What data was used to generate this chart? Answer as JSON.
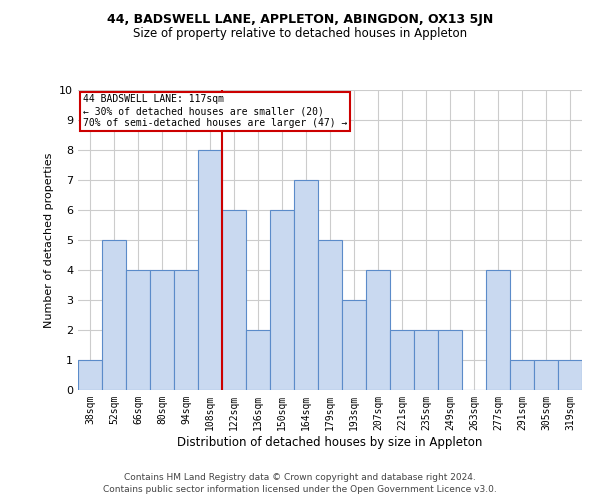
{
  "title1": "44, BADSWELL LANE, APPLETON, ABINGDON, OX13 5JN",
  "title2": "Size of property relative to detached houses in Appleton",
  "xlabel": "Distribution of detached houses by size in Appleton",
  "ylabel": "Number of detached properties",
  "categories": [
    "38sqm",
    "52sqm",
    "66sqm",
    "80sqm",
    "94sqm",
    "108sqm",
    "122sqm",
    "136sqm",
    "150sqm",
    "164sqm",
    "179sqm",
    "193sqm",
    "207sqm",
    "221sqm",
    "235sqm",
    "249sqm",
    "263sqm",
    "277sqm",
    "291sqm",
    "305sqm",
    "319sqm"
  ],
  "values": [
    1,
    5,
    4,
    4,
    4,
    8,
    6,
    2,
    6,
    7,
    5,
    3,
    4,
    2,
    2,
    2,
    0,
    4,
    1,
    1,
    1
  ],
  "bar_color": "#c9d9f0",
  "bar_edge_color": "#5b8bc9",
  "property_line_x": 5.5,
  "property_label": "44 BADSWELL LANE: 117sqm",
  "annotation_line1": "← 30% of detached houses are smaller (20)",
  "annotation_line2": "70% of semi-detached houses are larger (47) →",
  "annotation_box_color": "#ffffff",
  "annotation_box_edge_color": "#cc0000",
  "line_color": "#cc0000",
  "ylim": [
    0,
    10
  ],
  "yticks": [
    0,
    1,
    2,
    3,
    4,
    5,
    6,
    7,
    8,
    9,
    10
  ],
  "background_color": "#ffffff",
  "grid_color": "#cccccc",
  "footnote1": "Contains HM Land Registry data © Crown copyright and database right 2024.",
  "footnote2": "Contains public sector information licensed under the Open Government Licence v3.0."
}
